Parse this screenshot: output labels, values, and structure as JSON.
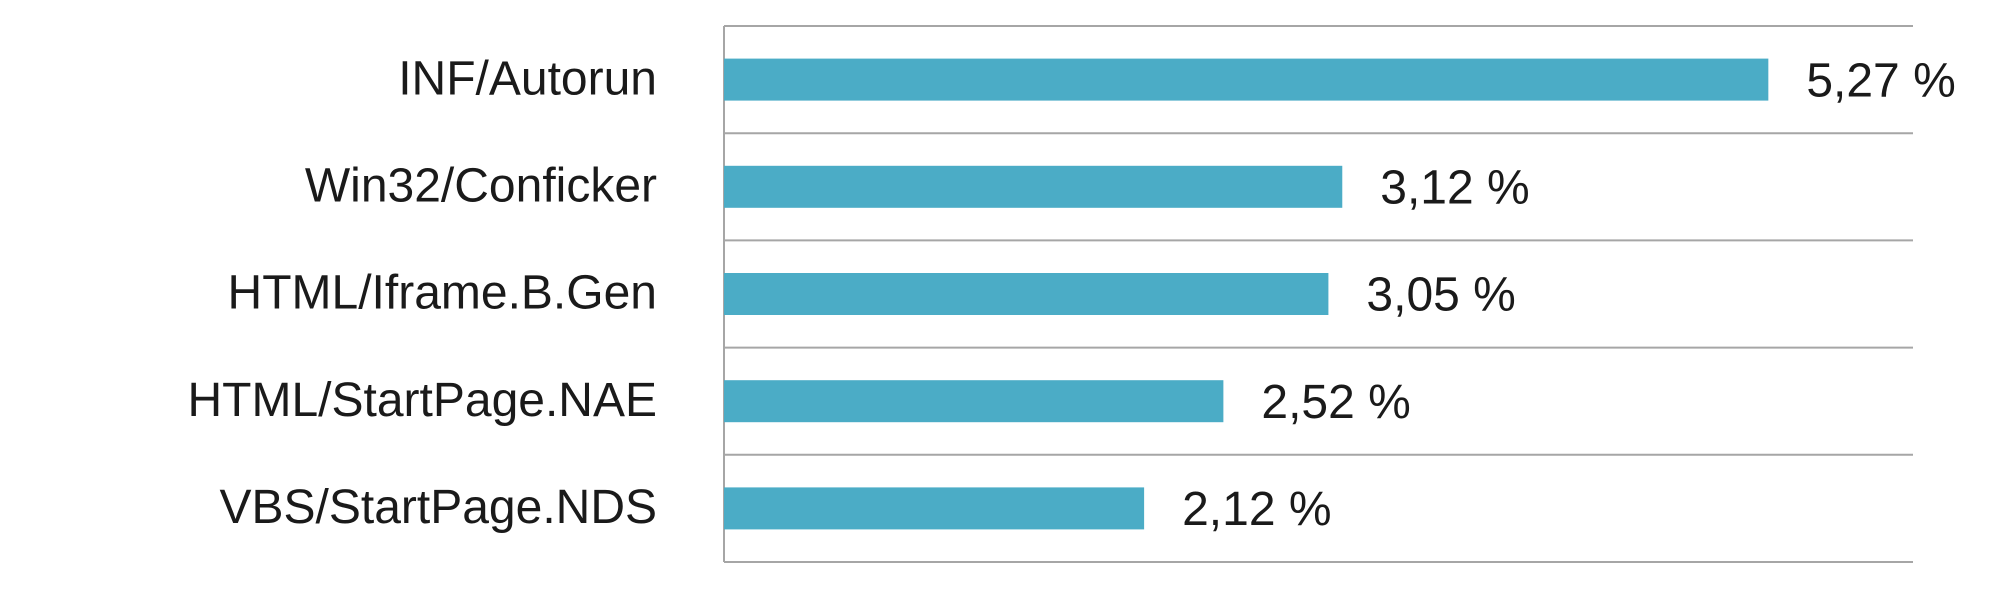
{
  "chart_data": {
    "type": "bar",
    "orientation": "horizontal",
    "categories": [
      "INF/Autorun",
      "Win32/Conficker",
      "HTML/Iframe.B.Gen",
      "HTML/StartPage.NAE",
      "VBS/StartPage.NDS"
    ],
    "values": [
      5.27,
      3.12,
      3.05,
      2.52,
      2.12
    ],
    "value_labels": [
      "5,27 %",
      "3,12 %",
      "3,05 %",
      "2,52 %",
      "2,12 %"
    ],
    "color": "#4bacc6",
    "xlim": [
      0,
      6
    ]
  }
}
